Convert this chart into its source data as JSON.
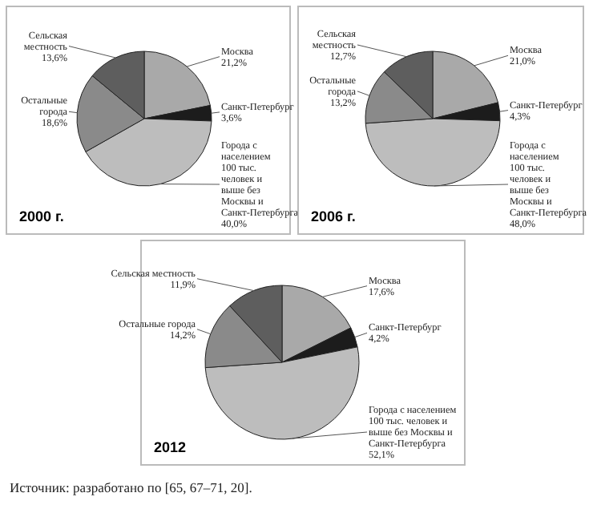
{
  "chart_data": [
    {
      "type": "pie",
      "title": "2000 г.",
      "categories": [
        "Москва",
        "Санкт-Петербург",
        "Города с населением 100 тыс. человек и выше без Москвы и Санкт-Петербурга",
        "Остальные города",
        "Сельская местность"
      ],
      "values": [
        21.2,
        3.6,
        40.0,
        18.6,
        13.6
      ],
      "value_labels": [
        "21,2%",
        "3,6%",
        "40,0%",
        "18,6%",
        "13,6%"
      ],
      "colors": [
        "#a9a9a9",
        "#1c1c1c",
        "#bdbdbd",
        "#8a8a8a",
        "#5e5e5e"
      ]
    },
    {
      "type": "pie",
      "title": "2006 г.",
      "categories": [
        "Москва",
        "Санкт-Петербург",
        "Города с населением 100 тыс. человек и выше без Москвы и Санкт-Петербурга",
        "Остальные города",
        "Сельская местность"
      ],
      "values": [
        21.0,
        4.3,
        48.0,
        13.2,
        12.7
      ],
      "value_labels": [
        "21,0%",
        "4,3%",
        "48,0%",
        "13,2%",
        "12,7%"
      ],
      "colors": [
        "#a9a9a9",
        "#1c1c1c",
        "#bdbdbd",
        "#8a8a8a",
        "#5e5e5e"
      ]
    },
    {
      "type": "pie",
      "title": "2012",
      "categories": [
        "Москва",
        "Санкт-Петербург",
        "Города с населением 100 тыс. человек и выше без Москвы и Санкт-Петербурга",
        "Остальные города",
        "Сельская местность"
      ],
      "values": [
        17.6,
        4.2,
        52.1,
        14.2,
        11.9
      ],
      "value_labels": [
        "17,6%",
        "4,2%",
        "52,1%",
        "14,2%",
        "11,9%"
      ],
      "colors": [
        "#a9a9a9",
        "#1c1c1c",
        "#bdbdbd",
        "#8a8a8a",
        "#5e5e5e"
      ],
      "annotations": [
        "Источник: разработано по [65, 67–71, 20]."
      ]
    }
  ]
}
